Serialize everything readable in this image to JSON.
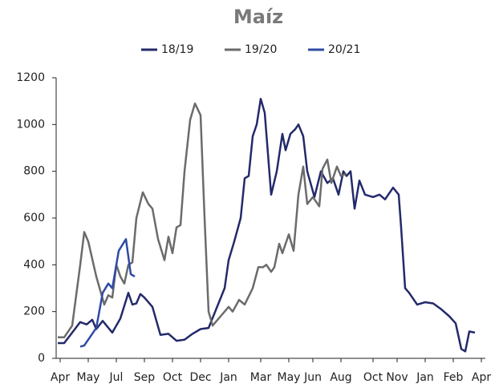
{
  "chart_data": {
    "type": "line",
    "title": "Maíz",
    "xlim": [
      0,
      107
    ],
    "xticks": [
      {
        "value": 1,
        "label": "Apr"
      },
      {
        "value": 8,
        "label": "May"
      },
      {
        "value": 15,
        "label": "Jul"
      },
      {
        "value": 22,
        "label": "Sep"
      },
      {
        "value": 29,
        "label": "Oct"
      },
      {
        "value": 36,
        "label": "Dec"
      },
      {
        "value": 43,
        "label": "Jan"
      },
      {
        "value": 51,
        "label": "Mar"
      },
      {
        "value": 58,
        "label": "May"
      },
      {
        "value": 64,
        "label": "Jun"
      },
      {
        "value": 71,
        "label": "Aug"
      },
      {
        "value": 79,
        "label": "Oct"
      },
      {
        "value": 85,
        "label": "Nov"
      },
      {
        "value": 92,
        "label": "Jan"
      },
      {
        "value": 99,
        "label": "Feb"
      },
      {
        "value": 106,
        "label": "Apr"
      }
    ],
    "ylim": [
      0,
      1200
    ],
    "yticks": [
      0,
      200,
      400,
      600,
      800,
      1000,
      1200
    ],
    "grid": false,
    "series": [
      {
        "name": "18/19",
        "color": "#232a6b",
        "x": [
          0.4,
          2,
          4,
          6,
          7.6,
          9,
          10,
          11.6,
          14,
          16,
          18,
          19,
          20,
          21,
          22,
          24,
          26,
          28,
          30,
          32,
          34,
          36,
          38,
          42,
          43,
          44.4,
          46,
          47,
          48,
          49,
          50,
          51,
          52,
          53.6,
          55,
          56.4,
          57.2,
          58.4,
          59.6,
          60.4,
          61.6,
          62.6,
          64.4,
          66,
          67.6,
          69,
          70.4,
          71.6,
          72.4,
          73.4,
          74.4,
          75.6,
          77,
          79,
          80.6,
          82,
          84,
          85.4,
          86,
          87,
          88,
          90,
          92,
          94,
          96,
          98,
          99.6,
          101,
          102,
          103,
          104.4
        ],
        "values": [
          65,
          65,
          110,
          155,
          145,
          165,
          125,
          160,
          110,
          170,
          280,
          230,
          235,
          275,
          260,
          220,
          100,
          105,
          75,
          80,
          105,
          125,
          130,
          300,
          420,
          500,
          600,
          770,
          780,
          950,
          1000,
          1110,
          1050,
          700,
          800,
          960,
          890,
          960,
          980,
          1000,
          950,
          800,
          690,
          800,
          750,
          770,
          700,
          800,
          780,
          800,
          640,
          760,
          700,
          690,
          700,
          680,
          730,
          700,
          560,
          300,
          280,
          230,
          240,
          235,
          210,
          180,
          150,
          40,
          30,
          115,
          110
        ]
      },
      {
        "name": "19/20",
        "color": "#6b6b6b",
        "x": [
          0.4,
          2,
          4,
          6,
          7,
          8,
          10,
          11,
          12,
          13,
          14,
          15,
          16,
          17,
          18,
          19,
          20,
          21.6,
          23,
          24,
          25.4,
          27,
          28,
          29,
          30,
          31,
          32,
          33.4,
          34.6,
          36,
          37,
          38,
          39,
          41,
          43,
          44,
          45.6,
          47,
          49,
          50.4,
          51.6,
          52.4,
          53.6,
          54.4,
          55.6,
          56.4,
          58,
          59.2,
          60.4,
          61.6,
          62.6,
          64,
          65.6,
          66.4,
          67.6,
          68.6,
          70,
          71,
          72.4
        ],
        "values": [
          90,
          90,
          140,
          400,
          540,
          500,
          350,
          290,
          230,
          270,
          260,
          400,
          350,
          320,
          400,
          410,
          600,
          710,
          660,
          640,
          510,
          420,
          520,
          450,
          560,
          570,
          800,
          1020,
          1090,
          1040,
          600,
          200,
          140,
          180,
          220,
          200,
          250,
          230,
          300,
          390,
          390,
          400,
          370,
          390,
          490,
          450,
          530,
          460,
          700,
          820,
          660,
          690,
          650,
          810,
          850,
          750,
          820,
          780,
          790
        ]
      },
      {
        "name": "20/21",
        "color": "#2f4ba6",
        "x": [
          6,
          7,
          8.4,
          10,
          11.6,
          13,
          14,
          15.6,
          17.4,
          18.6,
          19.6
        ],
        "values": [
          50,
          55,
          90,
          130,
          280,
          320,
          300,
          460,
          510,
          360,
          350
        ]
      }
    ]
  }
}
